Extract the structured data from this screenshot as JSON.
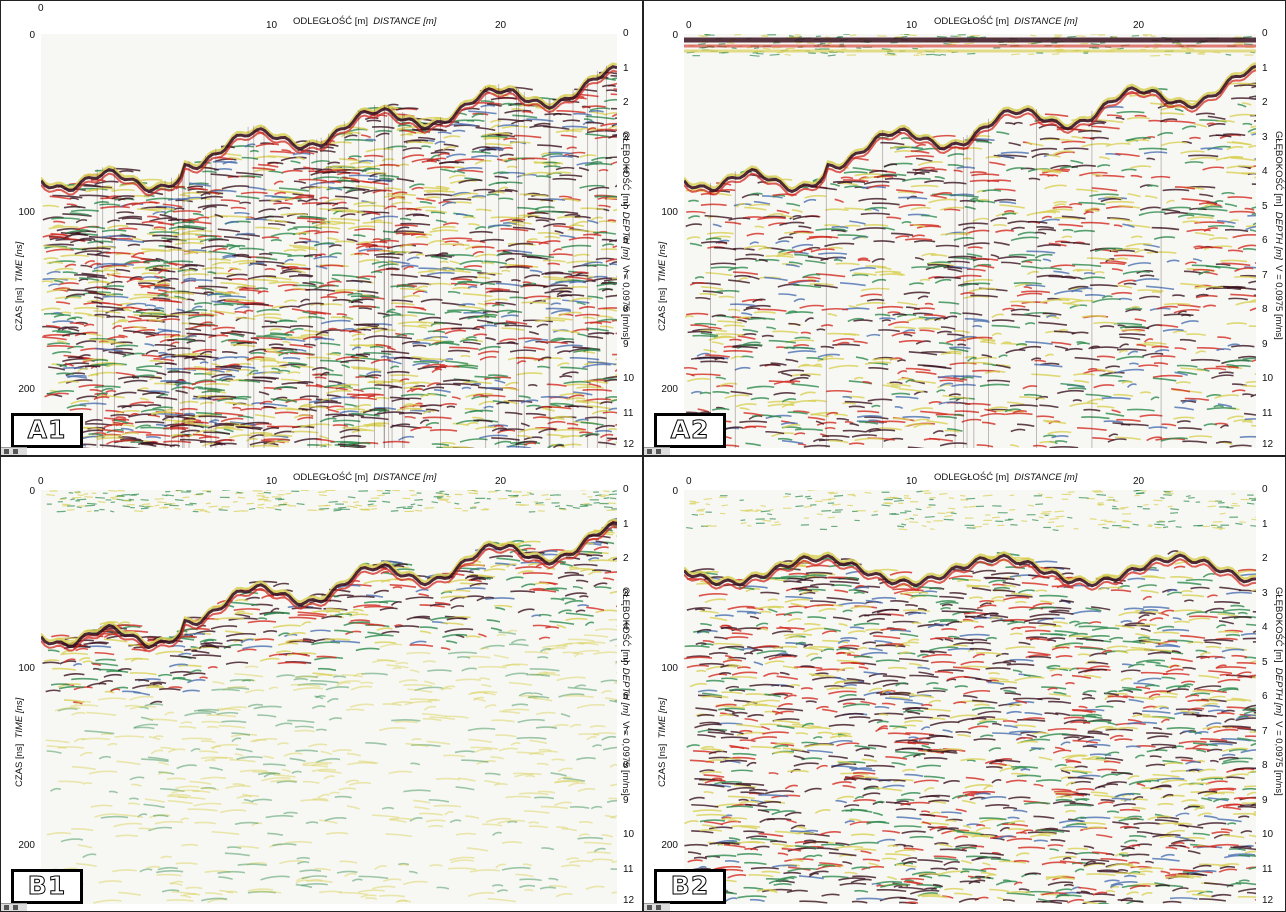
{
  "axes": {
    "x_title": "ODLEGŁOŚĆ [m]",
    "x_title_italic": "DISTANCE [m]",
    "y_left_title": "CZAS [ns]",
    "y_left_title_italic": "TIME [ns]",
    "y_right_title": "GŁĘBOKOŚĆ [m]",
    "y_right_title_italic": "DEPTH [m]",
    "velocity_label": "V = 0,0975 [m/ns]",
    "x_ticks": [
      "0",
      "10",
      "20"
    ],
    "time_ticks": [
      "0",
      "100",
      "200"
    ],
    "depth_ticks": [
      "0",
      "1",
      "2",
      "3",
      "4",
      "5",
      "6",
      "7",
      "8",
      "9",
      "10",
      "11",
      "12"
    ]
  },
  "panels": [
    {
      "id": "A1",
      "label": "A1",
      "x_start_tick": "0",
      "profile": "dense"
    },
    {
      "id": "A2",
      "label": "A2",
      "x_start_tick": "0",
      "profile": "banded"
    },
    {
      "id": "B1",
      "label": "B1",
      "x_start_tick": "0",
      "profile": "filtered"
    },
    {
      "id": "B2",
      "label": "B2",
      "x_start_tick": "0",
      "profile": "layered"
    }
  ],
  "colors": {
    "dark": "#3a1320",
    "red": "#d22a22",
    "green": "#2e8a4e",
    "yellow": "#d8cf55",
    "blue": "#4a6fb0",
    "background": "#f7f8f3"
  }
}
